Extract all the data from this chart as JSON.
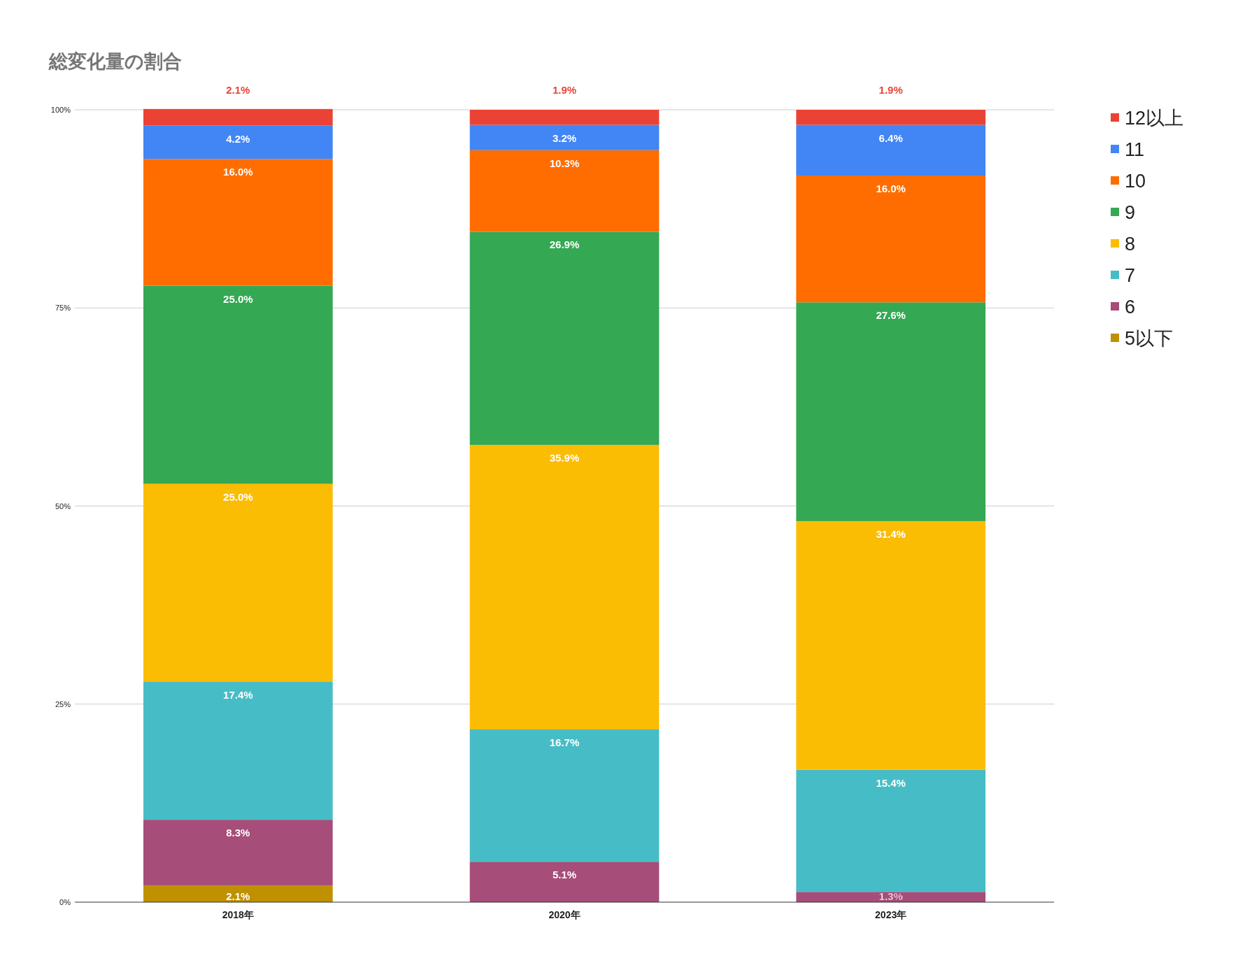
{
  "chart_data": {
    "type": "bar",
    "stacked": true,
    "title": "総変化量の割合",
    "categories": [
      "2018年",
      "2020年",
      "2023年"
    ],
    "ylim": [
      0,
      100
    ],
    "yticks": [
      {
        "value": 0,
        "label": "0%"
      },
      {
        "value": 25,
        "label": "25%"
      },
      {
        "value": 50,
        "label": "50%"
      },
      {
        "value": 75,
        "label": "75%"
      },
      {
        "value": 100,
        "label": "100%"
      }
    ],
    "grid": "y",
    "legend": "top right",
    "series": [
      {
        "name": "5以下",
        "color": "#bf9000",
        "values": [
          2.1,
          null,
          null
        ],
        "value_labels": [
          "2.1%",
          null,
          null
        ]
      },
      {
        "name": "6",
        "color": "#a64d79",
        "values": [
          8.3,
          5.1,
          1.3
        ],
        "value_labels": [
          "8.3%",
          "5.1%",
          "1.3%"
        ]
      },
      {
        "name": "7",
        "color": "#46bdc6",
        "values": [
          17.4,
          16.7,
          15.4
        ],
        "value_labels": [
          "17.4%",
          "16.7%",
          "15.4%"
        ]
      },
      {
        "name": "8",
        "color": "#fbbc04",
        "values": [
          25.0,
          35.9,
          31.4
        ],
        "value_labels": [
          "25.0%",
          "35.9%",
          "31.4%"
        ]
      },
      {
        "name": "9",
        "color": "#34a853",
        "values": [
          25.0,
          26.9,
          27.6
        ],
        "value_labels": [
          "25.0%",
          "26.9%",
          "27.6%"
        ]
      },
      {
        "name": "10",
        "color": "#ff6d01",
        "values": [
          16.0,
          10.3,
          16.0
        ],
        "value_labels": [
          "16.0%",
          "10.3%",
          "16.0%"
        ]
      },
      {
        "name": "11",
        "color": "#4285f4",
        "values": [
          4.2,
          3.2,
          6.4
        ],
        "value_labels": [
          "4.2%",
          "3.2%",
          "6.4%"
        ]
      },
      {
        "name": "12以上",
        "color": "#ea4335",
        "values": [
          2.1,
          1.9,
          1.9
        ],
        "value_labels": [
          "2.1%",
          "1.9%",
          "1.9%"
        ]
      }
    ]
  }
}
